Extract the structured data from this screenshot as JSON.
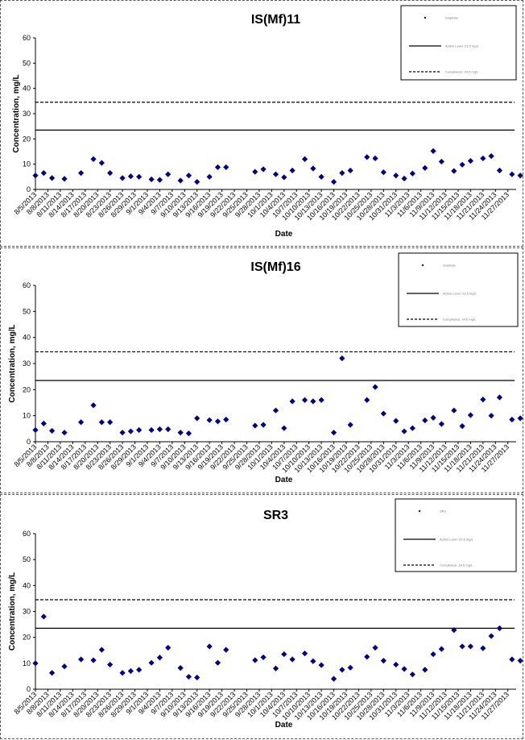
{
  "colors": {
    "marker": "#00008B",
    "line": "#000000"
  },
  "chart_data": [
    {
      "type": "scatter",
      "title": "IS(Mf)11",
      "xlabel": "Date",
      "ylabel": "Concentration, mg/L",
      "ylim": [
        0,
        60
      ],
      "yticks": [
        0,
        10,
        20,
        30,
        40,
        50,
        60
      ],
      "xlim": [
        "8/5/2013",
        "11/29/2013"
      ],
      "xtick_labels": [
        "8/5/2013",
        "8/8/2013",
        "8/11/2013",
        "8/14/2013",
        "8/17/2013",
        "8/20/2013",
        "8/23/2013",
        "8/26/2013",
        "8/29/2013",
        "9/1/2013",
        "9/4/2013",
        "9/7/2013",
        "9/10/2013",
        "9/13/2013",
        "9/16/2013",
        "9/19/2013",
        "9/22/2013",
        "9/25/2013",
        "9/28/2013",
        "10/1/2013",
        "10/4/2013",
        "10/7/2013",
        "10/10/2013",
        "10/13/2013",
        "10/16/2013",
        "10/19/2013",
        "10/22/2013",
        "10/25/2013",
        "10/28/2013",
        "10/31/2013",
        "11/3/2013",
        "11/6/2013",
        "11/9/2013",
        "11/12/2013",
        "11/15/2013",
        "11/18/2013",
        "11/21/2013",
        "11/24/2013",
        "11/27/2013"
      ],
      "legend_position": "top-right",
      "legend": [
        "Sulphate",
        "Action Level: 23.5 mg/L",
        "Compliance: 34.5 mg/L"
      ],
      "grid": false,
      "hlines": [
        {
          "y": 23.5,
          "style": "solid"
        },
        {
          "y": 34.5,
          "style": "dashed"
        }
      ],
      "series": [
        {
          "name": "Sulphate",
          "points": [
            [
              "8/5/2013",
              5.5
            ],
            [
              "8/7/2013",
              6.5
            ],
            [
              "8/9/2013",
              4.5
            ],
            [
              "8/12/2013",
              4.2
            ],
            [
              "8/16/2013",
              6.5
            ],
            [
              "8/19/2013",
              12
            ],
            [
              "8/21/2013",
              10.5
            ],
            [
              "8/23/2013",
              6.5
            ],
            [
              "8/26/2013",
              4.5
            ],
            [
              "8/28/2013",
              5.2
            ],
            [
              "8/30/2013",
              5
            ],
            [
              "9/2/2013",
              4
            ],
            [
              "9/4/2013",
              3.8
            ],
            [
              "9/6/2013",
              6
            ],
            [
              "9/9/2013",
              3.5
            ],
            [
              "9/11/2013",
              5.5
            ],
            [
              "9/13/2013",
              3
            ],
            [
              "9/16/2013",
              5
            ],
            [
              "9/18/2013",
              8.8
            ],
            [
              "9/20/2013",
              8.8
            ],
            [
              "9/27/2013",
              7
            ],
            [
              "9/29/2013",
              8
            ],
            [
              "10/2/2013",
              6
            ],
            [
              "10/4/2013",
              4.8
            ],
            [
              "10/6/2013",
              7.5
            ],
            [
              "10/9/2013",
              12
            ],
            [
              "10/11/2013",
              8.3
            ],
            [
              "10/13/2013",
              5
            ],
            [
              "10/16/2013",
              3
            ],
            [
              "10/18/2013",
              6.5
            ],
            [
              "10/20/2013",
              7.5
            ],
            [
              "10/24/2013",
              12.8
            ],
            [
              "10/26/2013",
              12.3
            ],
            [
              "10/28/2013",
              6.8
            ],
            [
              "10/31/2013",
              5.5
            ],
            [
              "11/2/2013",
              4.3
            ],
            [
              "11/4/2013",
              6.3
            ],
            [
              "11/7/2013",
              8.5
            ],
            [
              "11/9/2013",
              15.2
            ],
            [
              "11/11/2013",
              11
            ],
            [
              "11/14/2013",
              7.3
            ],
            [
              "11/16/2013",
              9.8
            ],
            [
              "11/18/2013",
              11.3
            ],
            [
              "11/21/2013",
              12.3
            ],
            [
              "11/23/2013",
              13.2
            ],
            [
              "11/25/2013",
              7.5
            ],
            [
              "11/28/2013",
              6
            ],
            [
              "11/30/2013",
              5.5
            ],
            [
              "12/2/2013",
              10.5
            ]
          ]
        }
      ]
    },
    {
      "type": "scatter",
      "title": "IS(Mf)16",
      "xlabel": "Date",
      "ylabel": "Concentration, mg/L",
      "ylim": [
        0,
        60
      ],
      "yticks": [
        0,
        10,
        20,
        30,
        40,
        50,
        60
      ],
      "xlim": [
        "8/5/2013",
        "11/29/2013"
      ],
      "xtick_labels": [
        "8/5/2013",
        "8/8/2013",
        "8/11/2013",
        "8/14/2013",
        "8/17/2013",
        "8/20/2013",
        "8/23/2013",
        "8/26/2013",
        "8/29/2013",
        "9/1/2013",
        "9/4/2013",
        "9/7/2013",
        "9/10/2013",
        "9/13/2013",
        "9/16/2013",
        "9/19/2013",
        "9/22/2013",
        "9/25/2013",
        "9/28/2013",
        "10/1/2013",
        "10/4/2013",
        "10/7/2013",
        "10/10/2013",
        "10/13/2013",
        "10/16/2013",
        "10/19/2013",
        "10/22/2013",
        "10/25/2013",
        "10/28/2013",
        "10/31/2013",
        "11/3/2013",
        "11/6/2013",
        "11/9/2013",
        "11/12/2013",
        "11/15/2013",
        "11/18/2013",
        "11/21/2013",
        "11/24/2013",
        "11/27/2013"
      ],
      "legend_position": "top-right",
      "legend": [
        "Sulphate",
        "Action Level: 23.5 mg/L",
        "Compliance: 34.5 mg/L"
      ],
      "grid": false,
      "hlines": [
        {
          "y": 23.5,
          "style": "solid"
        },
        {
          "y": 34.5,
          "style": "dashed"
        }
      ],
      "series": [
        {
          "name": "Sulphate",
          "points": [
            [
              "8/5/2013",
              4.5
            ],
            [
              "8/7/2013",
              7
            ],
            [
              "8/9/2013",
              4.2
            ],
            [
              "8/12/2013",
              3.5
            ],
            [
              "8/16/2013",
              7.5
            ],
            [
              "8/19/2013",
              14
            ],
            [
              "8/21/2013",
              7.5
            ],
            [
              "8/23/2013",
              7.5
            ],
            [
              "8/26/2013",
              3.5
            ],
            [
              "8/28/2013",
              4
            ],
            [
              "8/30/2013",
              4.5
            ],
            [
              "9/2/2013",
              4.5
            ],
            [
              "9/4/2013",
              4.8
            ],
            [
              "9/6/2013",
              4.8
            ],
            [
              "9/9/2013",
              3.5
            ],
            [
              "9/11/2013",
              3.2
            ],
            [
              "9/13/2013",
              9
            ],
            [
              "9/16/2013",
              8.3
            ],
            [
              "9/18/2013",
              7.8
            ],
            [
              "9/20/2013",
              8.5
            ],
            [
              "9/27/2013",
              6.2
            ],
            [
              "9/29/2013",
              6.5
            ],
            [
              "10/2/2013",
              12
            ],
            [
              "10/4/2013",
              5.2
            ],
            [
              "10/6/2013",
              15.5
            ],
            [
              "10/9/2013",
              16
            ],
            [
              "10/11/2013",
              15.5
            ],
            [
              "10/13/2013",
              16
            ],
            [
              "10/16/2013",
              3.5
            ],
            [
              "10/18/2013",
              32
            ],
            [
              "10/20/2013",
              6.5
            ],
            [
              "10/24/2013",
              16
            ],
            [
              "10/26/2013",
              21
            ],
            [
              "10/28/2013",
              10.8
            ],
            [
              "10/31/2013",
              8
            ],
            [
              "11/2/2013",
              4
            ],
            [
              "11/4/2013",
              5.2
            ],
            [
              "11/7/2013",
              8.2
            ],
            [
              "11/9/2013",
              9.2
            ],
            [
              "11/11/2013",
              6.8
            ],
            [
              "11/14/2013",
              12
            ],
            [
              "11/16/2013",
              6
            ],
            [
              "11/18/2013",
              10.2
            ],
            [
              "11/21/2013",
              16.2
            ],
            [
              "11/23/2013",
              10
            ],
            [
              "11/25/2013",
              17
            ],
            [
              "11/28/2013",
              8.5
            ],
            [
              "11/30/2013",
              9
            ],
            [
              "12/2/2013",
              17.3
            ]
          ]
        }
      ]
    },
    {
      "type": "scatter",
      "title": "SR3",
      "xlabel": "Date",
      "ylabel": "Concentration, mg/L",
      "ylim": [
        0,
        60
      ],
      "yticks": [
        0,
        10,
        20,
        30,
        40,
        50,
        60
      ],
      "xlim": [
        "8/5/2013",
        "11/29/2013"
      ],
      "xtick_labels": [
        "8/5/2013",
        "8/8/2013",
        "8/11/2013",
        "8/14/2013",
        "8/17/2013",
        "8/20/2013",
        "8/23/2013",
        "8/26/2013",
        "8/29/2013",
        "9/1/2013",
        "9/4/2013",
        "9/7/2013",
        "9/10/2013",
        "9/13/2013",
        "9/16/2013",
        "9/19/2013",
        "9/22/2013",
        "9/25/2013",
        "9/28/2013",
        "10/1/2013",
        "10/4/2013",
        "10/7/2013",
        "10/10/2013",
        "10/13/2013",
        "10/16/2013",
        "10/19/2013",
        "10/22/2013",
        "10/25/2013",
        "10/28/2013",
        "10/31/2013",
        "11/3/2013",
        "11/6/2013",
        "11/9/2013",
        "11/12/2013",
        "11/15/2013",
        "11/18/2013",
        "11/21/2013",
        "11/24/2013",
        "11/27/2013"
      ],
      "legend_position": "top-right",
      "legend": [
        "SR3",
        "Action Level: 23.5 mg/L",
        "Compliance: 34.5 mg/L"
      ],
      "grid": false,
      "hlines": [
        {
          "y": 23.5,
          "style": "solid"
        },
        {
          "y": 34.5,
          "style": "dashed"
        }
      ],
      "series": [
        {
          "name": "SR3",
          "points": [
            [
              "8/5/2013",
              10
            ],
            [
              "8/7/2013",
              28
            ],
            [
              "8/9/2013",
              6.3
            ],
            [
              "8/12/2013",
              8.8
            ],
            [
              "8/16/2013",
              11.5
            ],
            [
              "8/19/2013",
              11.2
            ],
            [
              "8/21/2013",
              15.2
            ],
            [
              "8/23/2013",
              9.5
            ],
            [
              "8/26/2013",
              6.3
            ],
            [
              "8/28/2013",
              7
            ],
            [
              "8/30/2013",
              7.5
            ],
            [
              "9/2/2013",
              10.2
            ],
            [
              "9/4/2013",
              12.2
            ],
            [
              "9/6/2013",
              16
            ],
            [
              "9/9/2013",
              8.2
            ],
            [
              "9/11/2013",
              4.8
            ],
            [
              "9/13/2013",
              4.5
            ],
            [
              "9/16/2013",
              16.5
            ],
            [
              "9/18/2013",
              10.2
            ],
            [
              "9/20/2013",
              15.2
            ],
            [
              "9/27/2013",
              11.2
            ],
            [
              "9/29/2013",
              12.3
            ],
            [
              "10/2/2013",
              8
            ],
            [
              "10/4/2013",
              13.5
            ],
            [
              "10/6/2013",
              11.5
            ],
            [
              "10/9/2013",
              13.8
            ],
            [
              "10/11/2013",
              10.8
            ],
            [
              "10/13/2013",
              9.3
            ],
            [
              "10/16/2013",
              4
            ],
            [
              "10/18/2013",
              7.5
            ],
            [
              "10/20/2013",
              8.3
            ],
            [
              "10/24/2013",
              12.5
            ],
            [
              "10/26/2013",
              16
            ],
            [
              "10/28/2013",
              11
            ],
            [
              "10/31/2013",
              9.5
            ],
            [
              "11/2/2013",
              7.8
            ],
            [
              "11/4/2013",
              5.7
            ],
            [
              "11/7/2013",
              7.5
            ],
            [
              "11/9/2013",
              13.5
            ],
            [
              "11/11/2013",
              15.5
            ],
            [
              "11/14/2013",
              22.8
            ],
            [
              "11/16/2013",
              16.5
            ],
            [
              "11/18/2013",
              16.5
            ],
            [
              "11/21/2013",
              15.8
            ],
            [
              "11/23/2013",
              20.5
            ],
            [
              "11/25/2013",
              23.5
            ],
            [
              "11/28/2013",
              11.5
            ],
            [
              "11/30/2013",
              11
            ],
            [
              "12/2/2013",
              11
            ]
          ]
        }
      ]
    }
  ]
}
